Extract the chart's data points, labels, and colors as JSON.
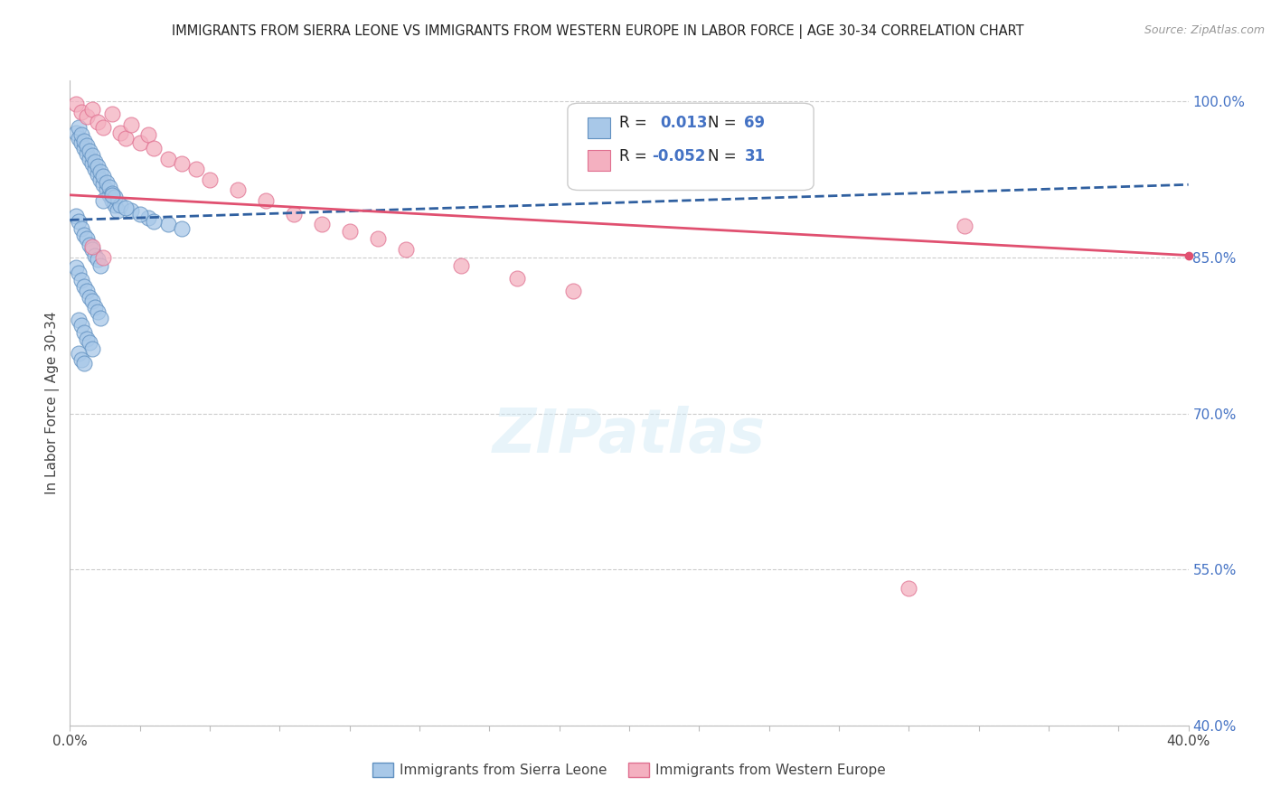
{
  "title": "IMMIGRANTS FROM SIERRA LEONE VS IMMIGRANTS FROM WESTERN EUROPE IN LABOR FORCE | AGE 30-34 CORRELATION CHART",
  "source": "Source: ZipAtlas.com",
  "ylabel": "In Labor Force | Age 30-34",
  "xlim": [
    0.0,
    0.4
  ],
  "ylim": [
    0.4,
    1.02
  ],
  "ytick_right": [
    1.0,
    0.85,
    0.7,
    0.55,
    0.4
  ],
  "ytick_right_labels": [
    "100.0%",
    "85.0%",
    "70.0%",
    "55.0%",
    "40.0%"
  ],
  "blue_R": 0.013,
  "blue_N": 69,
  "pink_R": -0.052,
  "pink_N": 31,
  "blue_color": "#a8c8e8",
  "pink_color": "#f4b0c0",
  "blue_edge_color": "#6090c0",
  "pink_edge_color": "#e07090",
  "blue_line_color": "#3060a0",
  "pink_line_color": "#e05070",
  "legend_label_blue": "Immigrants from Sierra Leone",
  "legend_label_pink": "Immigrants from Western Europe",
  "background_color": "#ffffff",
  "grid_color": "#cccccc",
  "blue_scatter_x": [
    0.002,
    0.003,
    0.003,
    0.004,
    0.004,
    0.005,
    0.005,
    0.006,
    0.006,
    0.007,
    0.007,
    0.008,
    0.008,
    0.009,
    0.009,
    0.01,
    0.01,
    0.011,
    0.011,
    0.012,
    0.012,
    0.013,
    0.013,
    0.014,
    0.014,
    0.015,
    0.015,
    0.016,
    0.016,
    0.017,
    0.002,
    0.003,
    0.004,
    0.005,
    0.006,
    0.007,
    0.008,
    0.009,
    0.01,
    0.011,
    0.002,
    0.003,
    0.004,
    0.005,
    0.006,
    0.007,
    0.008,
    0.009,
    0.01,
    0.011,
    0.003,
    0.004,
    0.005,
    0.006,
    0.007,
    0.008,
    0.003,
    0.004,
    0.005,
    0.018,
    0.022,
    0.028,
    0.035,
    0.012,
    0.02,
    0.025,
    0.015,
    0.03,
    0.04
  ],
  "blue_scatter_y": [
    0.97,
    0.965,
    0.975,
    0.96,
    0.968,
    0.955,
    0.962,
    0.95,
    0.958,
    0.945,
    0.952,
    0.94,
    0.948,
    0.935,
    0.942,
    0.93,
    0.938,
    0.925,
    0.932,
    0.92,
    0.928,
    0.915,
    0.922,
    0.91,
    0.918,
    0.905,
    0.912,
    0.9,
    0.908,
    0.895,
    0.89,
    0.885,
    0.878,
    0.872,
    0.868,
    0.862,
    0.858,
    0.852,
    0.848,
    0.842,
    0.84,
    0.835,
    0.828,
    0.822,
    0.818,
    0.812,
    0.808,
    0.802,
    0.798,
    0.792,
    0.79,
    0.785,
    0.778,
    0.772,
    0.768,
    0.762,
    0.758,
    0.752,
    0.748,
    0.9,
    0.895,
    0.888,
    0.882,
    0.905,
    0.898,
    0.892,
    0.91,
    0.885,
    0.878
  ],
  "pink_scatter_x": [
    0.002,
    0.004,
    0.006,
    0.008,
    0.01,
    0.012,
    0.015,
    0.018,
    0.02,
    0.022,
    0.025,
    0.028,
    0.03,
    0.035,
    0.04,
    0.045,
    0.05,
    0.06,
    0.07,
    0.08,
    0.09,
    0.1,
    0.11,
    0.12,
    0.14,
    0.16,
    0.18,
    0.3,
    0.32,
    0.008,
    0.012
  ],
  "pink_scatter_y": [
    0.998,
    0.99,
    0.985,
    0.992,
    0.98,
    0.975,
    0.988,
    0.97,
    0.965,
    0.978,
    0.96,
    0.968,
    0.955,
    0.945,
    0.94,
    0.935,
    0.925,
    0.915,
    0.905,
    0.892,
    0.882,
    0.875,
    0.868,
    0.858,
    0.842,
    0.83,
    0.818,
    0.532,
    0.88,
    0.86,
    0.85
  ],
  "blue_trend_x": [
    0.0,
    0.4
  ],
  "blue_trend_y": [
    0.886,
    0.92
  ],
  "pink_trend_x": [
    0.0,
    0.4
  ],
  "pink_trend_y": [
    0.91,
    0.852
  ]
}
